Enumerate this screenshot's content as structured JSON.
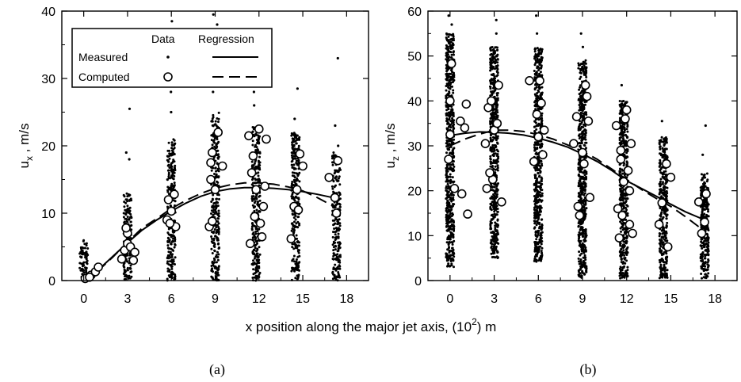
{
  "figure": {
    "xlabel_main": "x position along the major jet axis, (10",
    "xlabel_sup": "2",
    "xlabel_tail": ") m"
  },
  "legend": {
    "col_data": "Data",
    "col_regression": "Regression",
    "row_measured": "Measured",
    "row_computed": "Computed"
  },
  "chart_data": [
    {
      "type": "scatter",
      "caption": "(a)",
      "ylabel_main": "u",
      "ylabel_sub": "x",
      "ylabel_tail": " , m/s",
      "xlim": [
        -1.5,
        19.5
      ],
      "ylim": [
        0,
        40
      ],
      "xticks": [
        0,
        3,
        6,
        9,
        12,
        15,
        18
      ],
      "yticks": [
        0,
        10,
        20,
        30,
        40
      ],
      "measured_columns": [
        {
          "x": 0.0,
          "ymin": 0.0,
          "ymax": 6.0,
          "outliers": []
        },
        {
          "x": 3.0,
          "ymin": 0.0,
          "ymax": 13.0,
          "outliers": [
            18,
            19,
            25.5
          ]
        },
        {
          "x": 6.0,
          "ymin": 0.0,
          "ymax": 21.0,
          "outliers": [
            25,
            28,
            33,
            38.5
          ]
        },
        {
          "x": 9.0,
          "ymin": 0.0,
          "ymax": 25.0,
          "outliers": [
            28,
            31,
            35,
            38,
            39.5
          ]
        },
        {
          "x": 11.8,
          "ymin": 0.0,
          "ymax": 23.0,
          "outliers": [
            26,
            28,
            31,
            34.5
          ]
        },
        {
          "x": 14.5,
          "ymin": 0.0,
          "ymax": 22.0,
          "outliers": [
            24,
            28.5
          ]
        },
        {
          "x": 17.3,
          "ymin": 0.0,
          "ymax": 19.0,
          "outliers": [
            20,
            23,
            33
          ]
        }
      ],
      "computed_points": [
        {
          "x": 0.1,
          "y": 0.3
        },
        {
          "x": 0.5,
          "y": 0.8
        },
        {
          "x": 0.8,
          "y": 1.3
        },
        {
          "x": 1.0,
          "y": 2.0
        },
        {
          "x": 0.4,
          "y": 0.5
        },
        {
          "x": 2.6,
          "y": 3.2
        },
        {
          "x": 2.8,
          "y": 4.5
        },
        {
          "x": 3.0,
          "y": 5.5
        },
        {
          "x": 3.0,
          "y": 7.0
        },
        {
          "x": 3.2,
          "y": 5.0
        },
        {
          "x": 3.4,
          "y": 3.0
        },
        {
          "x": 3.5,
          "y": 4.2
        },
        {
          "x": 2.9,
          "y": 7.8
        },
        {
          "x": 5.7,
          "y": 9.0
        },
        {
          "x": 5.8,
          "y": 12.0
        },
        {
          "x": 6.0,
          "y": 10.3
        },
        {
          "x": 6.2,
          "y": 12.8
        },
        {
          "x": 6.3,
          "y": 8.0
        },
        {
          "x": 5.9,
          "y": 8.5
        },
        {
          "x": 8.6,
          "y": 8.0
        },
        {
          "x": 8.7,
          "y": 17.5
        },
        {
          "x": 8.8,
          "y": 19.0
        },
        {
          "x": 9.0,
          "y": 13.5
        },
        {
          "x": 9.2,
          "y": 22.0
        },
        {
          "x": 9.5,
          "y": 17.0
        },
        {
          "x": 8.7,
          "y": 15.0
        },
        {
          "x": 8.8,
          "y": 8.8
        },
        {
          "x": 11.3,
          "y": 21.5
        },
        {
          "x": 11.4,
          "y": 5.5
        },
        {
          "x": 11.6,
          "y": 18.5
        },
        {
          "x": 11.7,
          "y": 9.5
        },
        {
          "x": 11.8,
          "y": 13.5
        },
        {
          "x": 12.0,
          "y": 22.5
        },
        {
          "x": 12.1,
          "y": 8.5
        },
        {
          "x": 12.2,
          "y": 6.5
        },
        {
          "x": 12.3,
          "y": 11.0
        },
        {
          "x": 12.4,
          "y": 14.0
        },
        {
          "x": 12.5,
          "y": 21.0
        },
        {
          "x": 11.5,
          "y": 16.0
        },
        {
          "x": 14.2,
          "y": 6.2
        },
        {
          "x": 14.4,
          "y": 11.0
        },
        {
          "x": 14.6,
          "y": 13.5
        },
        {
          "x": 14.8,
          "y": 18.8
        },
        {
          "x": 15.0,
          "y": 17.0
        },
        {
          "x": 14.7,
          "y": 10.5
        },
        {
          "x": 16.8,
          "y": 15.3
        },
        {
          "x": 17.2,
          "y": 12.3
        },
        {
          "x": 17.3,
          "y": 10.0
        },
        {
          "x": 17.4,
          "y": 17.8
        }
      ],
      "regression_measured": {
        "x": [
          0,
          1,
          2,
          3,
          4,
          5,
          6,
          7,
          8,
          9,
          10,
          11,
          12,
          13,
          14,
          15,
          16,
          17.3
        ],
        "y": [
          0.2,
          1.6,
          3.6,
          5.6,
          7.5,
          9.0,
          10.3,
          11.5,
          12.5,
          13.2,
          13.6,
          13.8,
          13.8,
          13.7,
          13.5,
          13.2,
          12.8,
          12.2
        ]
      },
      "regression_computed": {
        "x": [
          0,
          1,
          2,
          3,
          4,
          5,
          6,
          7,
          8,
          9,
          10,
          11,
          12,
          13,
          14,
          15,
          16,
          17.3
        ],
        "y": [
          0.0,
          1.5,
          3.5,
          5.7,
          7.8,
          9.2,
          10.7,
          11.9,
          12.9,
          13.7,
          14.2,
          14.5,
          14.5,
          14.3,
          13.9,
          13.3,
          12.3,
          10.8
        ]
      }
    },
    {
      "type": "scatter",
      "caption": "(b)",
      "ylabel_main": "u",
      "ylabel_sub": "z",
      "ylabel_tail": " , m/s",
      "xlim": [
        -1.5,
        19.5
      ],
      "ylim": [
        0,
        60
      ],
      "xticks": [
        0,
        3,
        6,
        9,
        12,
        15,
        18
      ],
      "yticks": [
        0,
        10,
        20,
        30,
        40,
        50,
        60
      ],
      "measured_columns": [
        {
          "x": 0.0,
          "ymin": 3.0,
          "ymax": 55.0,
          "outliers": [
            57,
            59
          ]
        },
        {
          "x": 3.0,
          "ymin": 5.0,
          "ymax": 52.0,
          "outliers": [
            55,
            58
          ]
        },
        {
          "x": 6.0,
          "ymin": 4.0,
          "ymax": 52.0,
          "outliers": [
            55,
            59
          ]
        },
        {
          "x": 9.0,
          "ymin": 0.5,
          "ymax": 49.0,
          "outliers": [
            52,
            55
          ]
        },
        {
          "x": 11.8,
          "ymin": 0.5,
          "ymax": 40.0,
          "outliers": [
            43.5
          ]
        },
        {
          "x": 14.5,
          "ymin": 0.5,
          "ymax": 32.0,
          "outliers": [
            35.5
          ]
        },
        {
          "x": 17.3,
          "ymin": 0.5,
          "ymax": 24.0,
          "outliers": [
            28,
            34.5
          ]
        }
      ],
      "computed_points": [
        {
          "x": -0.1,
          "y": 27.0
        },
        {
          "x": 0.0,
          "y": 32.5
        },
        {
          "x": 0.0,
          "y": 40.0
        },
        {
          "x": 0.1,
          "y": 48.3
        },
        {
          "x": 0.3,
          "y": 20.5
        },
        {
          "x": 0.7,
          "y": 35.5
        },
        {
          "x": 0.8,
          "y": 19.3
        },
        {
          "x": 1.0,
          "y": 34.0
        },
        {
          "x": 1.1,
          "y": 39.3
        },
        {
          "x": 1.2,
          "y": 14.8
        },
        {
          "x": 2.4,
          "y": 30.5
        },
        {
          "x": 2.5,
          "y": 20.5
        },
        {
          "x": 2.6,
          "y": 38.5
        },
        {
          "x": 2.8,
          "y": 40.0
        },
        {
          "x": 2.9,
          "y": 22.5
        },
        {
          "x": 3.0,
          "y": 33.5
        },
        {
          "x": 3.2,
          "y": 35.0
        },
        {
          "x": 3.3,
          "y": 43.5
        },
        {
          "x": 3.5,
          "y": 17.5
        },
        {
          "x": 2.7,
          "y": 24.0
        },
        {
          "x": 5.4,
          "y": 44.5
        },
        {
          "x": 5.7,
          "y": 26.5
        },
        {
          "x": 5.9,
          "y": 37.0
        },
        {
          "x": 6.0,
          "y": 32.0
        },
        {
          "x": 6.1,
          "y": 44.5
        },
        {
          "x": 6.2,
          "y": 39.5
        },
        {
          "x": 6.3,
          "y": 28.0
        },
        {
          "x": 6.4,
          "y": 33.5
        },
        {
          "x": 8.4,
          "y": 30.5
        },
        {
          "x": 8.6,
          "y": 36.5
        },
        {
          "x": 8.7,
          "y": 16.5
        },
        {
          "x": 8.8,
          "y": 14.5
        },
        {
          "x": 9.0,
          "y": 28.5
        },
        {
          "x": 9.2,
          "y": 43.5
        },
        {
          "x": 9.3,
          "y": 41.0
        },
        {
          "x": 9.4,
          "y": 35.5
        },
        {
          "x": 9.5,
          "y": 18.5
        },
        {
          "x": 9.1,
          "y": 26.0
        },
        {
          "x": 11.3,
          "y": 34.5
        },
        {
          "x": 11.4,
          "y": 16.0
        },
        {
          "x": 11.5,
          "y": 9.5
        },
        {
          "x": 11.6,
          "y": 29.0
        },
        {
          "x": 11.7,
          "y": 14.5
        },
        {
          "x": 11.8,
          "y": 22.0
        },
        {
          "x": 11.9,
          "y": 36.0
        },
        {
          "x": 12.0,
          "y": 38.0
        },
        {
          "x": 12.1,
          "y": 24.5
        },
        {
          "x": 12.2,
          "y": 20.0
        },
        {
          "x": 12.3,
          "y": 30.5
        },
        {
          "x": 12.4,
          "y": 10.5
        },
        {
          "x": 11.6,
          "y": 27.0
        },
        {
          "x": 12.2,
          "y": 12.5
        },
        {
          "x": 14.2,
          "y": 12.5
        },
        {
          "x": 14.4,
          "y": 17.3
        },
        {
          "x": 14.7,
          "y": 26.0
        },
        {
          "x": 14.8,
          "y": 7.5
        },
        {
          "x": 15.0,
          "y": 23.0
        },
        {
          "x": 16.9,
          "y": 17.5
        },
        {
          "x": 17.1,
          "y": 10.5
        },
        {
          "x": 17.3,
          "y": 13.0
        },
        {
          "x": 17.4,
          "y": 19.3
        }
      ],
      "regression_measured": {
        "x": [
          0,
          1,
          2,
          3,
          4,
          5,
          6,
          7,
          8,
          9,
          10,
          11,
          12,
          13,
          14,
          15,
          16,
          17.3
        ],
        "y": [
          32.3,
          32.8,
          33.1,
          33.0,
          32.8,
          32.4,
          31.7,
          30.8,
          29.7,
          28.2,
          26.5,
          24.5,
          22.2,
          20.5,
          18.8,
          17.0,
          15.3,
          13.5
        ]
      },
      "regression_computed": {
        "x": [
          0,
          1,
          2,
          3,
          4,
          5,
          6,
          7,
          8,
          9,
          10,
          11,
          12,
          13,
          14,
          15,
          16,
          17.3
        ],
        "y": [
          30.0,
          31.5,
          32.6,
          33.5,
          33.5,
          33.2,
          32.5,
          31.5,
          30.2,
          28.8,
          27.0,
          24.8,
          22.5,
          20.3,
          18.3,
          16.5,
          14.2,
          11.0
        ]
      }
    }
  ]
}
